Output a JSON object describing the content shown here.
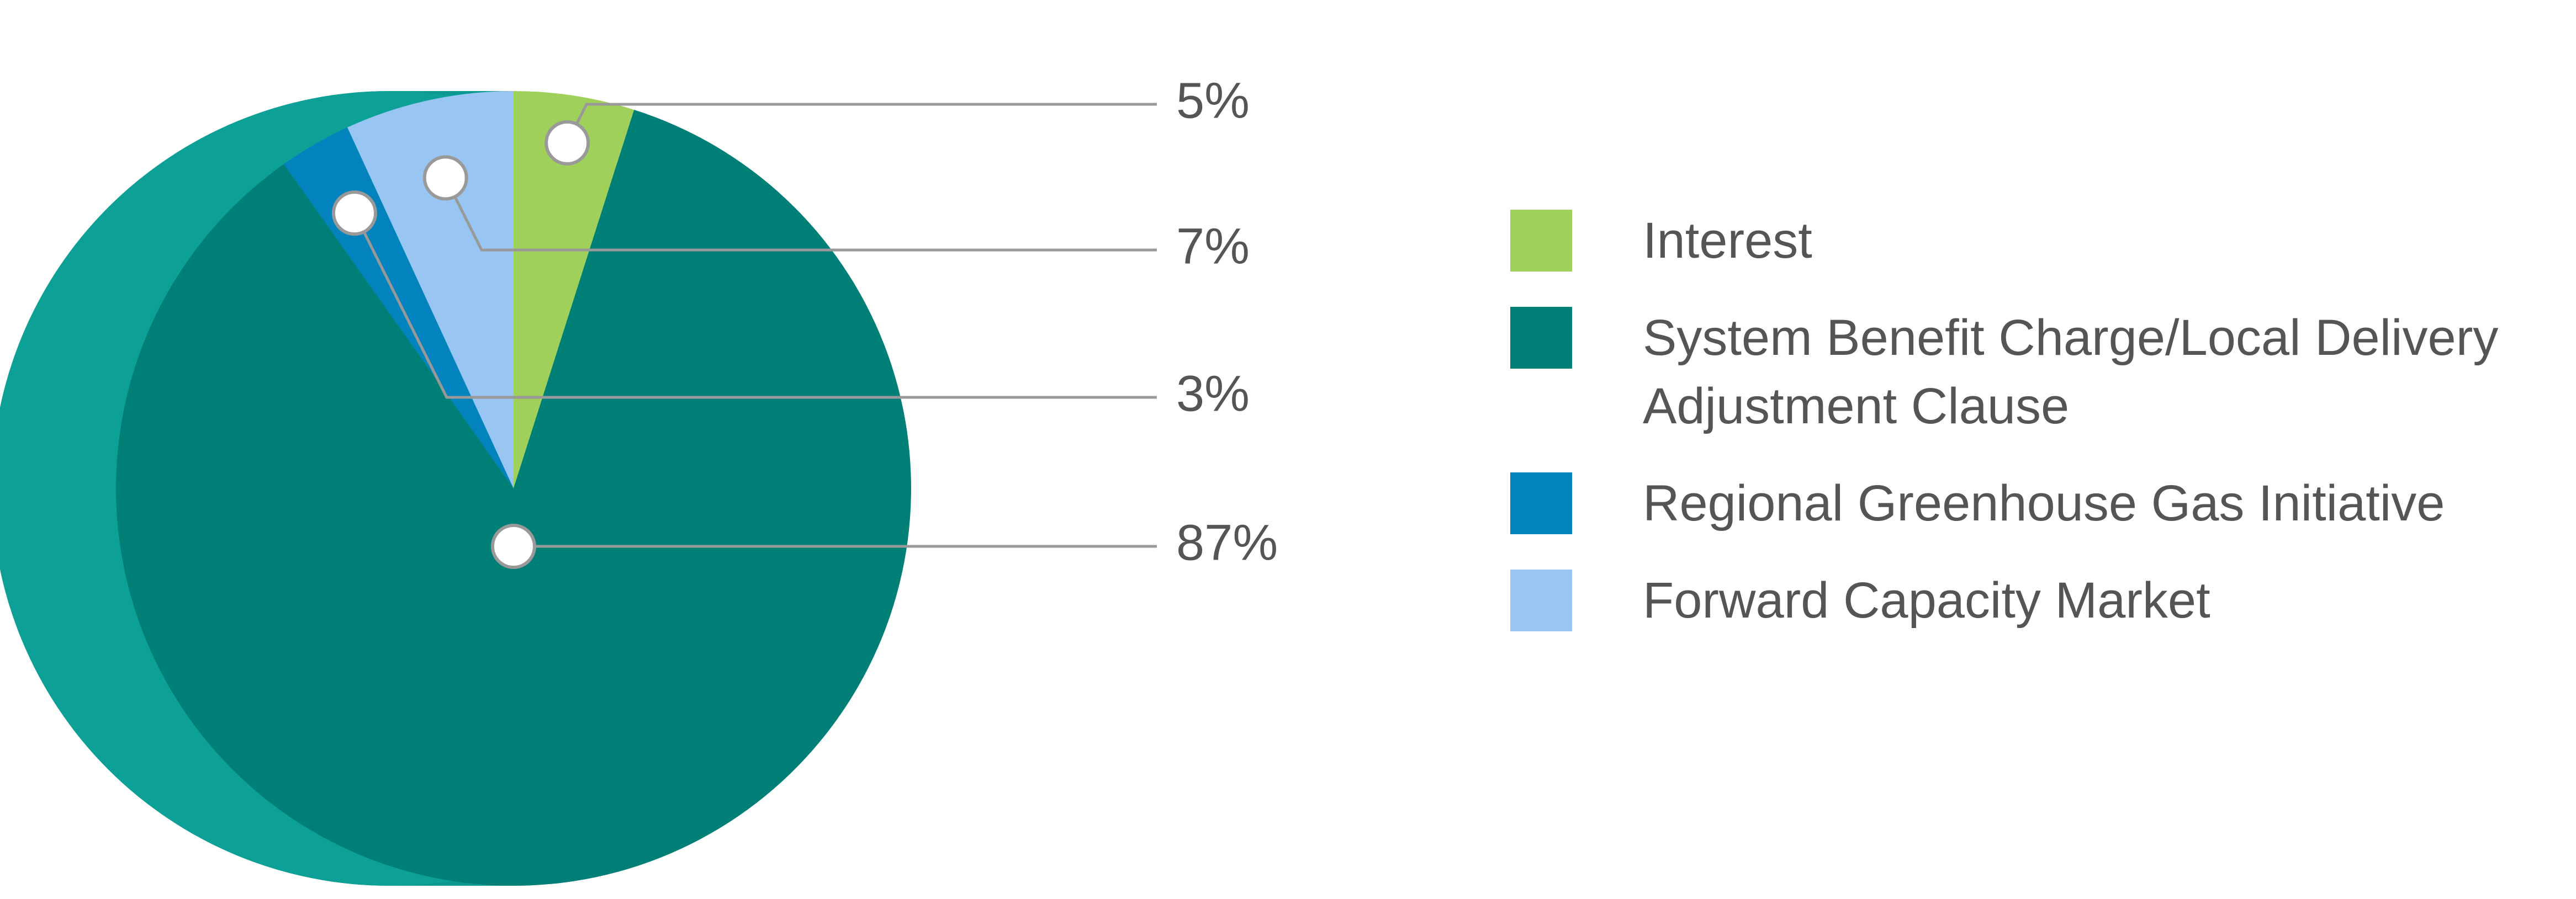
{
  "chart_data": {
    "type": "pie",
    "categories": [
      "Interest",
      "System Benefit Charge/Local Delivery Adjustment Clause",
      "Regional Greenhouse Gas Initiative",
      "Forward Capacity Market"
    ],
    "values": [
      5,
      87,
      3,
      7
    ],
    "value_labels": [
      "5%",
      "87%",
      "3%",
      "7%"
    ],
    "colors": [
      "#9fd05a",
      "#007f76",
      "#0283bd",
      "#98c5f2"
    ],
    "legend": "right"
  }
}
